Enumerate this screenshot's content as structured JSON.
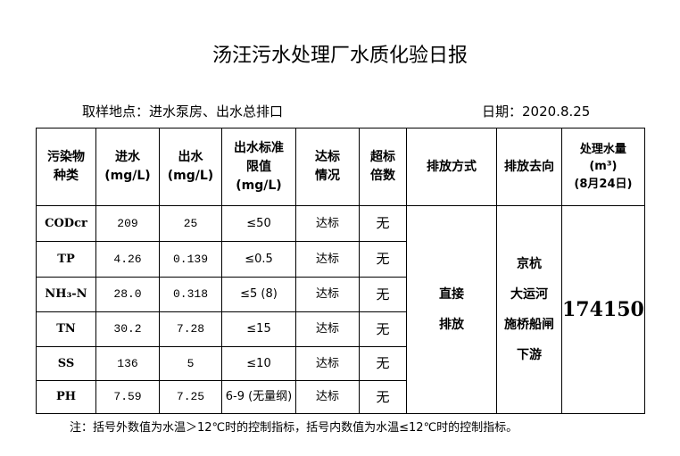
{
  "title": "汤汪污水处理厂水质化验日报",
  "location": "取样地点：进水泵房、出水总排口",
  "date": "日期：2020.8.25",
  "headers": [
    "污染物\n种类",
    "进水\n(mg/L)",
    "出水\n(mg/L)",
    "出水标准\n限值\n(mg/L)",
    "达标\n情况",
    "超标\n倍数",
    "排放方式",
    "排放去向",
    "处理水量\n(m³)\n(8月24日)"
  ],
  "rows": [
    {
      "name": "CODcr",
      "in": "209",
      "out": "25",
      "limit": "≤50",
      "status": "达标",
      "exceed": "无"
    },
    {
      "name": "TP",
      "in": "4.26",
      "out": "0.139",
      "limit": "≤0.5",
      "status": "达标",
      "exceed": "无"
    },
    {
      "name": "NH₃-N",
      "in": "28.0",
      "out": "0.318",
      "limit": "≤5 (8)",
      "status": "达标",
      "exceed": "无"
    },
    {
      "name": "TN",
      "in": "30.2",
      "out": "7.28",
      "limit": "≤15",
      "status": "达标",
      "exceed": "无"
    },
    {
      "name": "SS",
      "in": "136",
      "out": "5",
      "limit": "≤10",
      "status": "达标",
      "exceed": "无"
    },
    {
      "name": "PH",
      "in": "7.59",
      "out": "7.25",
      "limit": "6-9 (无量纲)",
      "status": "达标",
      "exceed": "无"
    }
  ],
  "discharge_method": "直接\n排放",
  "discharge_to": "京杭\n大运河\n施桥船闸\n下游",
  "volume": "174150",
  "note": "注：括号外数值为水温＞12℃时的控制指标，括号内数值为水温≤12℃时的控制指标。"
}
